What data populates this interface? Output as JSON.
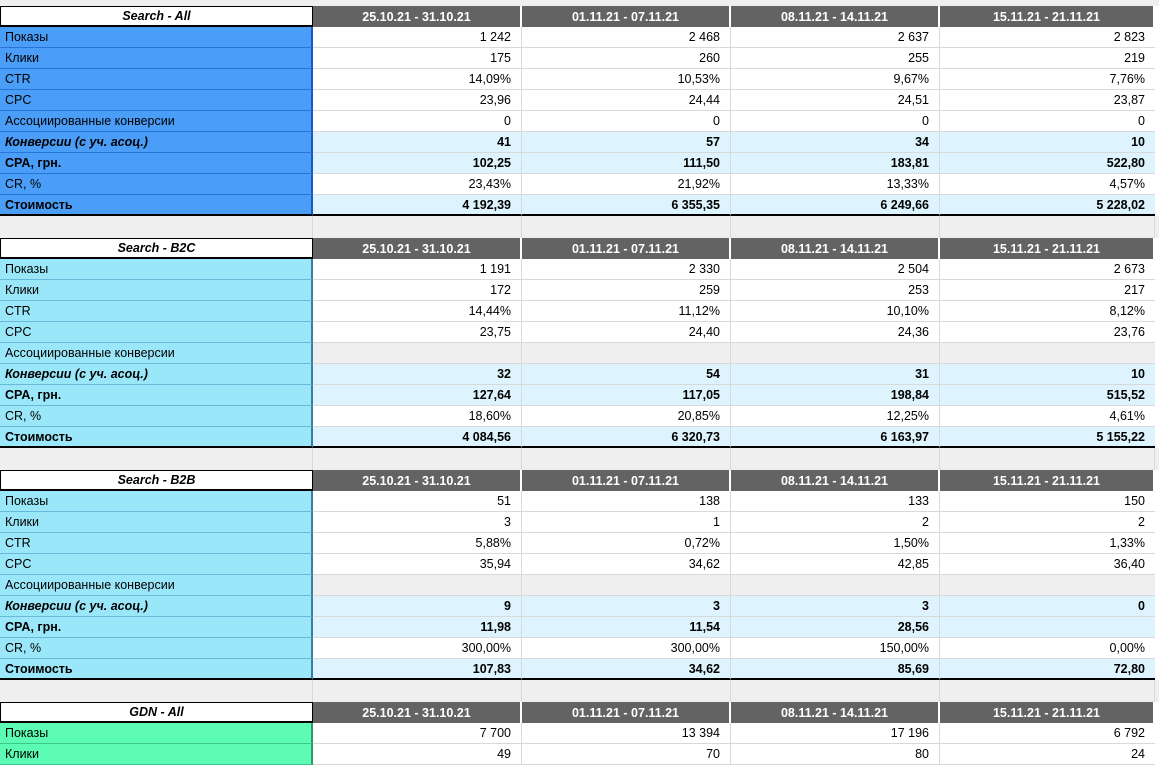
{
  "columns": [
    "25.10.21 - 31.10.21",
    "01.11.21 - 07.11.21",
    "08.11.21 - 14.11.21",
    "15.11.21 - 21.11.21"
  ],
  "sections": [
    {
      "title": "Search - All",
      "rows": [
        {
          "label": "Показы",
          "values": [
            "1 242",
            "2 468",
            "2 637",
            "2 823"
          ]
        },
        {
          "label": "Клики",
          "values": [
            "175",
            "260",
            "255",
            "219"
          ]
        },
        {
          "label": "CTR",
          "values": [
            "14,09%",
            "10,53%",
            "9,67%",
            "7,76%"
          ]
        },
        {
          "label": "CPC",
          "values": [
            "23,96",
            "24,44",
            "24,51",
            "23,87"
          ]
        },
        {
          "label": "Ассоциированные конверсии",
          "values": [
            "0",
            "0",
            "0",
            "0"
          ]
        },
        {
          "label": "Конверсии (с уч. асоц.)",
          "values": [
            "41",
            "57",
            "34",
            "10"
          ]
        },
        {
          "label": "CPA, грн.",
          "values": [
            "102,25",
            "111,50",
            "183,81",
            "522,80"
          ]
        },
        {
          "label": "CR, %",
          "values": [
            "23,43%",
            "21,92%",
            "13,33%",
            "4,57%"
          ]
        },
        {
          "label": "Стоимость",
          "values": [
            "4 192,39",
            "6 355,35",
            "6 249,66",
            "5 228,02"
          ]
        }
      ]
    },
    {
      "title": "Search - B2C",
      "rows": [
        {
          "label": "Показы",
          "values": [
            "1 191",
            "2 330",
            "2 504",
            "2 673"
          ]
        },
        {
          "label": "Клики",
          "values": [
            "172",
            "259",
            "253",
            "217"
          ]
        },
        {
          "label": "CTR",
          "values": [
            "14,44%",
            "11,12%",
            "10,10%",
            "8,12%"
          ]
        },
        {
          "label": "CPC",
          "values": [
            "23,75",
            "24,40",
            "24,36",
            "23,76"
          ]
        },
        {
          "label": "Ассоциированные конверсии",
          "values": [
            "",
            "",
            "",
            ""
          ]
        },
        {
          "label": "Конверсии (с уч. асоц.)",
          "values": [
            "32",
            "54",
            "31",
            "10"
          ]
        },
        {
          "label": "CPA, грн.",
          "values": [
            "127,64",
            "117,05",
            "198,84",
            "515,52"
          ]
        },
        {
          "label": "CR, %",
          "values": [
            "18,60%",
            "20,85%",
            "12,25%",
            "4,61%"
          ]
        },
        {
          "label": "Стоимость",
          "values": [
            "4 084,56",
            "6 320,73",
            "6 163,97",
            "5 155,22"
          ]
        }
      ]
    },
    {
      "title": "Search - B2B",
      "rows": [
        {
          "label": "Показы",
          "values": [
            "51",
            "138",
            "133",
            "150"
          ]
        },
        {
          "label": "Клики",
          "values": [
            "3",
            "1",
            "2",
            "2"
          ]
        },
        {
          "label": "CTR",
          "values": [
            "5,88%",
            "0,72%",
            "1,50%",
            "1,33%"
          ]
        },
        {
          "label": "CPC",
          "values": [
            "35,94",
            "34,62",
            "42,85",
            "36,40"
          ]
        },
        {
          "label": "Ассоциированные конверсии",
          "values": [
            "",
            "",
            "",
            ""
          ]
        },
        {
          "label": "Конверсии (с уч. асоц.)",
          "values": [
            "9",
            "3",
            "3",
            "0"
          ]
        },
        {
          "label": "CPA, грн.",
          "values": [
            "11,98",
            "11,54",
            "28,56",
            ""
          ]
        },
        {
          "label": "CR, %",
          "values": [
            "300,00%",
            "300,00%",
            "150,00%",
            "0,00%"
          ]
        },
        {
          "label": "Стоимость",
          "values": [
            "107,83",
            "34,62",
            "85,69",
            "72,80"
          ]
        }
      ]
    },
    {
      "title": "GDN - All",
      "rows": [
        {
          "label": "Показы",
          "values": [
            "7 700",
            "13 394",
            "17 196",
            "6 792"
          ]
        },
        {
          "label": "Клики",
          "values": [
            "49",
            "70",
            "80",
            "24"
          ]
        }
      ]
    }
  ]
}
